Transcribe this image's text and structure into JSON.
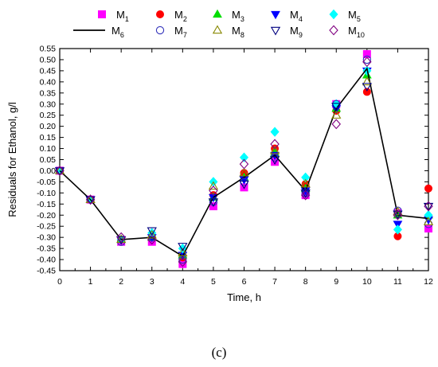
{
  "caption": "(c)",
  "chart_data": {
    "type": "scatter",
    "xlabel": "Time, h",
    "ylabel": "Residuals for Ethanol, g/l",
    "xlim": [
      0,
      12
    ],
    "ylim": [
      -0.45,
      0.55
    ],
    "xticks": [
      0,
      1,
      2,
      3,
      4,
      5,
      6,
      7,
      8,
      9,
      10,
      11,
      12
    ],
    "yticks": [
      -0.45,
      -0.4,
      -0.35,
      -0.3,
      -0.25,
      -0.2,
      -0.15,
      -0.1,
      -0.05,
      0.0,
      0.05,
      0.1,
      0.15,
      0.2,
      0.25,
      0.3,
      0.35,
      0.4,
      0.45,
      0.5,
      0.55
    ],
    "ytick_labels": [
      "-0.45",
      "-0.40",
      "-0.35",
      "-0.30",
      "-0.25",
      "-0.20",
      "-0.15",
      "-0.10",
      "-0.05",
      "0.00",
      "0.05",
      "0.10",
      "0.15",
      "0.20",
      "0.25",
      "0.30",
      "0.35",
      "0.40",
      "0.45",
      "0.50",
      "0.55"
    ],
    "x": [
      0,
      1,
      2,
      3,
      4,
      5,
      6,
      7,
      8,
      9,
      10,
      11,
      12
    ],
    "legend_position": "top",
    "series": [
      {
        "name": "M",
        "sub": "1",
        "marker": "square",
        "color": "#ff00ff",
        "filled": true,
        "values": [
          0.0,
          -0.13,
          -0.32,
          -0.32,
          -0.42,
          -0.16,
          -0.075,
          0.04,
          -0.11,
          0.3,
          0.525,
          -0.19,
          -0.26
        ]
      },
      {
        "name": "M",
        "sub": "2",
        "marker": "circle",
        "color": "#ff0000",
        "filled": true,
        "values": [
          0.0,
          -0.13,
          -0.31,
          -0.3,
          -0.39,
          -0.11,
          -0.01,
          0.1,
          -0.06,
          0.27,
          0.355,
          -0.295,
          -0.08
        ]
      },
      {
        "name": "M",
        "sub": "3",
        "marker": "triangle-up",
        "color": "#00dd00",
        "filled": true,
        "values": [
          0.0,
          -0.13,
          -0.31,
          -0.3,
          -0.38,
          -0.12,
          -0.03,
          0.08,
          -0.08,
          0.28,
          0.43,
          -0.2,
          -0.2
        ]
      },
      {
        "name": "M",
        "sub": "4",
        "marker": "triangle-down",
        "color": "#0000ff",
        "filled": true,
        "values": [
          0.0,
          -0.13,
          -0.31,
          -0.3,
          -0.38,
          -0.12,
          -0.04,
          0.07,
          -0.09,
          0.28,
          0.45,
          -0.24,
          -0.22
        ]
      },
      {
        "name": "M",
        "sub": "5",
        "marker": "diamond",
        "color": "#00ffff",
        "filled": true,
        "values": [
          0.0,
          -0.13,
          -0.31,
          -0.28,
          -0.35,
          -0.05,
          0.06,
          0.175,
          -0.03,
          0.3,
          0.45,
          -0.265,
          -0.2
        ]
      },
      {
        "name": "M",
        "sub": "6",
        "marker": "line",
        "color": "#000000",
        "filled": false,
        "values": [
          0.0,
          -0.13,
          -0.31,
          -0.3,
          -0.385,
          -0.12,
          -0.03,
          0.07,
          -0.09,
          0.28,
          0.46,
          -0.2,
          -0.215
        ]
      },
      {
        "name": "M",
        "sub": "7",
        "marker": "circle",
        "color": "#3333bb",
        "filled": false,
        "values": [
          0.0,
          -0.13,
          -0.32,
          -0.3,
          -0.4,
          -0.14,
          -0.05,
          0.06,
          -0.1,
          0.3,
          0.5,
          -0.18,
          -0.24
        ]
      },
      {
        "name": "M",
        "sub": "8",
        "marker": "triangle-up",
        "color": "#888800",
        "filled": false,
        "values": [
          0.0,
          -0.13,
          -0.31,
          -0.29,
          -0.37,
          -0.07,
          -0.01,
          0.09,
          -0.06,
          0.25,
          0.4,
          -0.185,
          -0.23
        ]
      },
      {
        "name": "M",
        "sub": "9",
        "marker": "triangle-down",
        "color": "#000080",
        "filled": false,
        "values": [
          0.0,
          -0.13,
          -0.31,
          -0.27,
          -0.34,
          -0.14,
          -0.06,
          0.05,
          -0.1,
          0.29,
          0.38,
          -0.195,
          -0.16
        ]
      },
      {
        "name": "M",
        "sub": "10",
        "marker": "diamond",
        "color": "#800080",
        "filled": false,
        "values": [
          0.0,
          -0.13,
          -0.3,
          -0.31,
          -0.41,
          -0.09,
          0.03,
          0.12,
          -0.11,
          0.21,
          0.49,
          -0.2,
          -0.16
        ]
      }
    ]
  }
}
